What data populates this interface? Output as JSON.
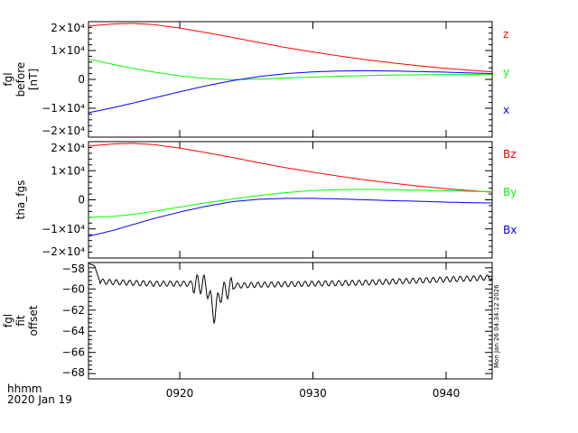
{
  "chart_data": [
    {
      "type": "line",
      "ylabel": [
        "fgl",
        "before",
        "[nT]"
      ],
      "ylim": [
        -20000,
        20000
      ],
      "yticks": [
        {
          "v": 20000,
          "label": "2×10⁴"
        },
        {
          "v": 10000,
          "label": "1×10⁴"
        },
        {
          "v": 0,
          "label": "0"
        },
        {
          "v": -10000,
          "label": "−1×10⁴"
        },
        {
          "v": -20000,
          "label": "−2×10⁴"
        }
      ],
      "x": [
        13.2,
        15,
        16.5,
        18,
        20,
        22,
        24,
        26,
        28,
        30,
        32,
        34,
        36,
        38,
        40,
        42,
        43.5
      ],
      "series": [
        {
          "name": "z",
          "color": "#ff0000",
          "values": [
            18500,
            19200,
            19400,
            19000,
            17800,
            16200,
            14500,
            12700,
            11000,
            9500,
            8100,
            6800,
            5700,
            4700,
            3800,
            3100,
            2600
          ]
        },
        {
          "name": "y",
          "color": "#00ff00",
          "values": [
            7000,
            5200,
            3800,
            2600,
            1200,
            300,
            -100,
            100,
            500,
            800,
            1100,
            1300,
            1500,
            1600,
            1700,
            1700,
            1700
          ]
        },
        {
          "name": "x",
          "color": "#0000ff",
          "values": [
            -11500,
            -9800,
            -8200,
            -6500,
            -4300,
            -2200,
            -400,
            1000,
            2000,
            2600,
            2900,
            3000,
            2900,
            2700,
            2500,
            2200,
            2000
          ]
        }
      ]
    },
    {
      "type": "line",
      "ylabel": [
        "tha_fgs"
      ],
      "ylim": [
        -20000,
        20000
      ],
      "yticks": [
        {
          "v": 20000,
          "label": "2×10⁴"
        },
        {
          "v": 10000,
          "label": "1×10⁴"
        },
        {
          "v": 0,
          "label": "0"
        },
        {
          "v": -10000,
          "label": "−1×10⁴"
        },
        {
          "v": -20000,
          "label": "−2×10⁴"
        }
      ],
      "x": [
        13.2,
        15,
        16.5,
        18,
        20,
        22,
        24,
        26,
        28,
        30,
        32,
        34,
        36,
        38,
        40,
        42,
        43.5
      ],
      "series": [
        {
          "name": "Bz",
          "color": "#ff0000",
          "values": [
            18500,
            19200,
            19400,
            19000,
            17800,
            16200,
            14500,
            12700,
            11000,
            9500,
            8100,
            6800,
            5700,
            4700,
            3800,
            3100,
            2600
          ]
        },
        {
          "name": "By",
          "color": "#00ff00",
          "values": [
            -6000,
            -5700,
            -5000,
            -4000,
            -2500,
            -1000,
            300,
            1500,
            2500,
            3200,
            3500,
            3600,
            3500,
            3300,
            3100,
            2900,
            2800
          ]
        },
        {
          "name": "Bx",
          "color": "#0000ff",
          "values": [
            -12500,
            -10500,
            -8500,
            -6500,
            -4200,
            -2200,
            -600,
            200,
            500,
            500,
            300,
            0,
            -300,
            -500,
            -800,
            -1000,
            -1100
          ]
        }
      ]
    },
    {
      "type": "line",
      "ylabel": [
        "fgl",
        "fit",
        "offset"
      ],
      "ylim": [
        -68.5,
        -57.5
      ],
      "yticks": [
        {
          "v": -58,
          "label": "−58"
        },
        {
          "v": -60,
          "label": "−60"
        },
        {
          "v": -62,
          "label": "−62"
        },
        {
          "v": -64,
          "label": "−64"
        },
        {
          "v": -66,
          "label": "−66"
        },
        {
          "v": -68,
          "label": "−68"
        }
      ],
      "x": [
        13.2,
        13.6,
        14,
        16,
        18,
        20,
        21,
        22,
        22.4,
        22.6,
        23,
        24,
        26,
        30,
        34,
        38,
        42,
        43.5
      ],
      "series": [
        {
          "name": "offset",
          "color": "#000000",
          "values": [
            -57.6,
            -57.8,
            -59.3,
            -59.4,
            -59.5,
            -59.5,
            -59.5,
            -59.6,
            -61.5,
            -62.5,
            -60.5,
            -59.7,
            -59.6,
            -59.5,
            -59.4,
            -59.2,
            -59.0,
            -58.9
          ]
        }
      ]
    }
  ],
  "xaxis": {
    "ticks": [
      {
        "v": 20,
        "label": "0920"
      },
      {
        "v": 30,
        "label": "0930"
      },
      {
        "v": 40,
        "label": "0940"
      }
    ],
    "xlim": [
      13.15,
      43.46
    ],
    "unit_label": "hhmm",
    "date_label": "2020 Jan 19"
  },
  "timestamp": "Mon Jan 26 04:34:12 2026"
}
